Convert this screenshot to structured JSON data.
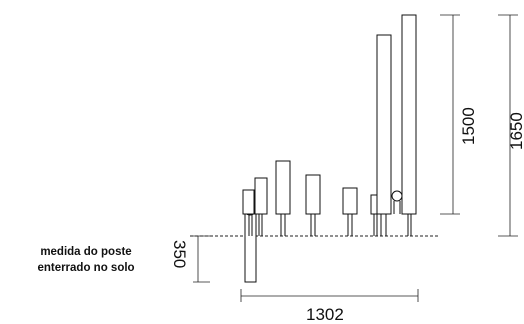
{
  "note": {
    "line1": "medida do poste",
    "line2": "enterrado no solo"
  },
  "dimensions": {
    "burial_depth": "350",
    "total_width": "1302",
    "height_small": "1500",
    "height_large": "1650"
  }
}
